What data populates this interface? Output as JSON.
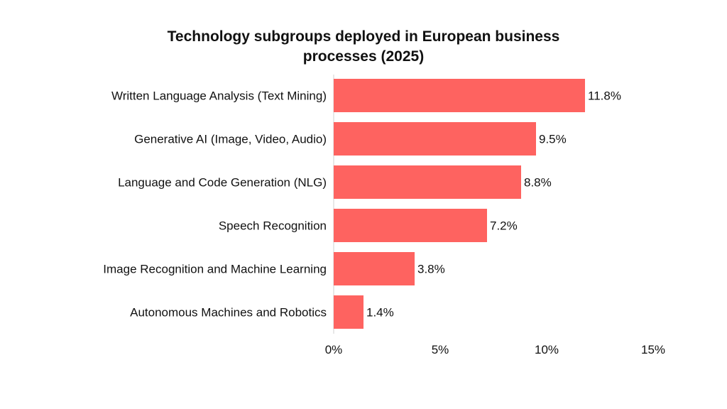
{
  "chart_data": {
    "type": "bar",
    "orientation": "horizontal",
    "title_lines": [
      "Technology subgroups deployed in European business",
      "processes (2025)"
    ],
    "categories": [
      "Written Language Analysis (Text Mining)",
      "Generative AI (Image, Video, Audio)",
      "Language and Code Generation (NLG)",
      "Speech Recognition",
      "Image Recognition and Machine Learning",
      "Autonomous Machines and Robotics"
    ],
    "values": [
      11.8,
      9.5,
      8.8,
      7.2,
      3.8,
      1.4
    ],
    "data_labels": [
      "11.8%",
      "9.5%",
      "8.8%",
      "7.2%",
      "3.8%",
      "1.4%"
    ],
    "xlabel": "",
    "ylabel": "",
    "xlim": [
      0,
      15
    ],
    "xticks": [
      0,
      5,
      10,
      15
    ],
    "xtick_labels": [
      "0%",
      "5%",
      "10%",
      "15%"
    ],
    "grid": false,
    "bar_color": "#fe6360"
  }
}
